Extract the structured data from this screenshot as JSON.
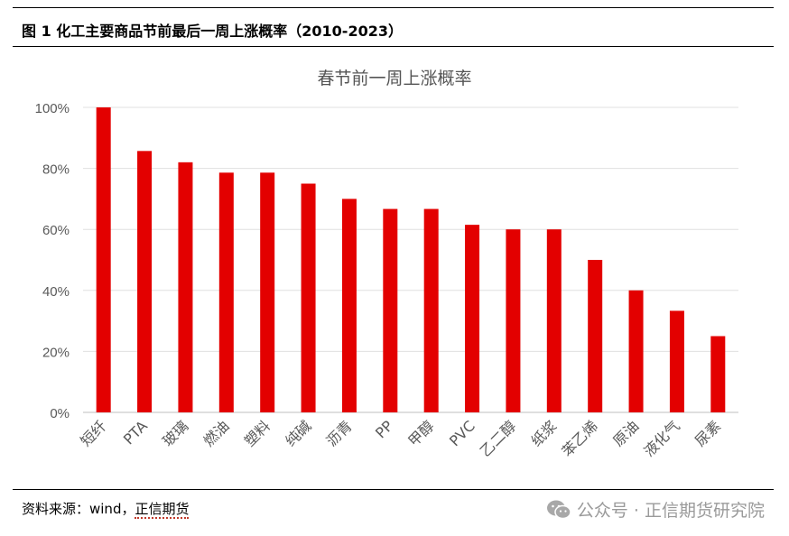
{
  "figure": {
    "title": "图 1  化工主要商品节前最后一周上涨概率（2010-2023）",
    "source_prefix": "资料来源：wind，",
    "source_link": "正信期货"
  },
  "watermark": {
    "text": "公众号 · 正信期货研究院",
    "icon": "wechat-icon"
  },
  "chart_data": {
    "type": "bar",
    "title": "春节前一周上涨概率",
    "categories": [
      "短纤",
      "PTA",
      "玻璃",
      "燃油",
      "塑料",
      "纯碱",
      "沥青",
      "PP",
      "甲醇",
      "PVC",
      "乙二醇",
      "纸浆",
      "苯乙烯",
      "原油",
      "液化气",
      "尿素"
    ],
    "values": [
      1.0,
      0.857,
      0.82,
      0.786,
      0.786,
      0.75,
      0.7,
      0.667,
      0.667,
      0.615,
      0.6,
      0.6,
      0.5,
      0.4,
      0.333,
      0.25
    ],
    "ylim": [
      0,
      1
    ],
    "yticks": [
      "0%",
      "20%",
      "40%",
      "60%",
      "80%",
      "100%"
    ],
    "bar_color": "#e30000",
    "grid": true,
    "legend": "none"
  }
}
